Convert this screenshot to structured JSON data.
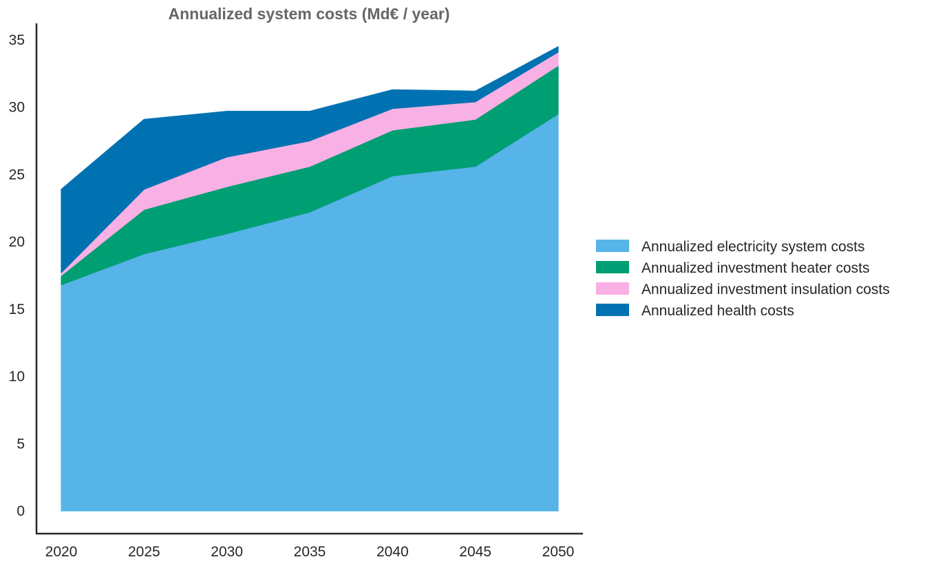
{
  "chart_data": {
    "type": "area",
    "stacked": true,
    "title": "Annualized system costs (Md€ / year)",
    "xlabel": "",
    "ylabel": "",
    "x": [
      2020,
      2025,
      2030,
      2035,
      2040,
      2045,
      2050
    ],
    "xticks": [
      "2020",
      "2025",
      "2030",
      "2035",
      "2040",
      "2045",
      "2050"
    ],
    "yticks": [
      "0",
      "5",
      "10",
      "15",
      "20",
      "25",
      "30",
      "35"
    ],
    "ylim": [
      -1.7,
      36.2
    ],
    "xlim": [
      2018.5,
      2051.5
    ],
    "grid": false,
    "legend_position": "right",
    "series": [
      {
        "name": "Annualized electricity system costs",
        "color": "#56B4E9",
        "values": [
          16.8,
          19.1,
          20.6,
          22.2,
          24.9,
          25.6,
          29.5
        ]
      },
      {
        "name": "Annualized investment heater costs",
        "color": "#009E73",
        "values": [
          0.7,
          3.3,
          3.5,
          3.4,
          3.4,
          3.5,
          3.6
        ]
      },
      {
        "name": "Annualized investment insulation costs",
        "color": "#F9B0E4",
        "values": [
          0.2,
          1.5,
          2.2,
          1.9,
          1.6,
          1.3,
          1.0
        ]
      },
      {
        "name": "Annualized health costs",
        "color": "#0072B2",
        "values": [
          6.2,
          5.2,
          3.4,
          2.2,
          1.4,
          0.8,
          0.4
        ]
      }
    ]
  }
}
